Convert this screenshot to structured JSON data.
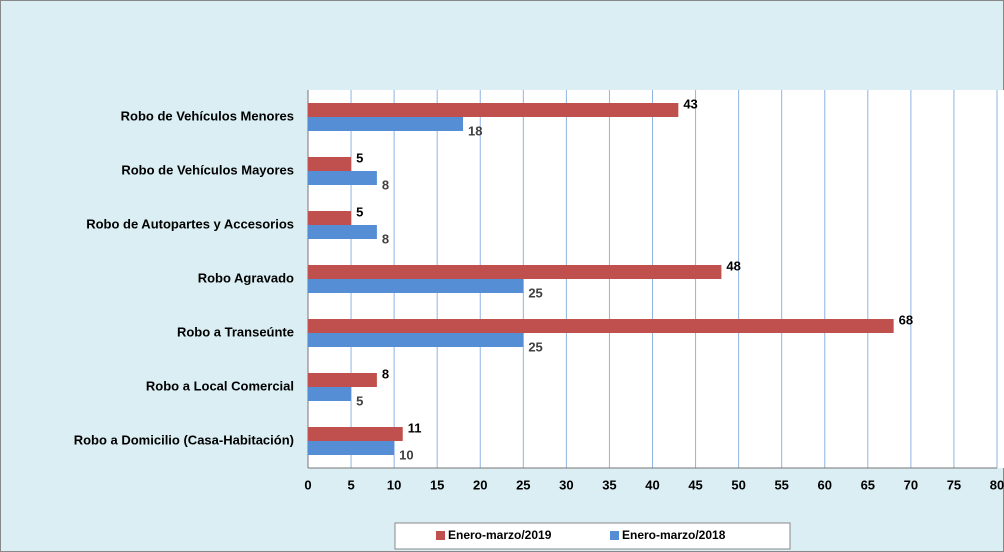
{
  "chart_data": {
    "type": "bar",
    "orientation": "horizontal",
    "categories": [
      "Robo de Vehículos Menores",
      "Robo de Vehículos Mayores",
      "Robo de Autopartes y Accesorios",
      "Robo Agravado",
      "Robo a Transeúnte",
      "Robo a Local Comercial",
      "Robo a Domicilio (Casa-Habitación)"
    ],
    "series": [
      {
        "name": "Enero-marzo/2019",
        "color": "#c0504d",
        "values": [
          43,
          5,
          5,
          48,
          68,
          8,
          11
        ]
      },
      {
        "name": "Enero-marzo/2018",
        "color": "#558ed5",
        "values": [
          18,
          8,
          8,
          25,
          25,
          5,
          10
        ]
      }
    ],
    "xlim": [
      0,
      80
    ],
    "xticks": [
      0,
      5,
      10,
      15,
      20,
      25,
      30,
      35,
      40,
      45,
      50,
      55,
      60,
      65,
      70,
      75,
      80
    ],
    "grid": true,
    "legend": "bottom"
  }
}
